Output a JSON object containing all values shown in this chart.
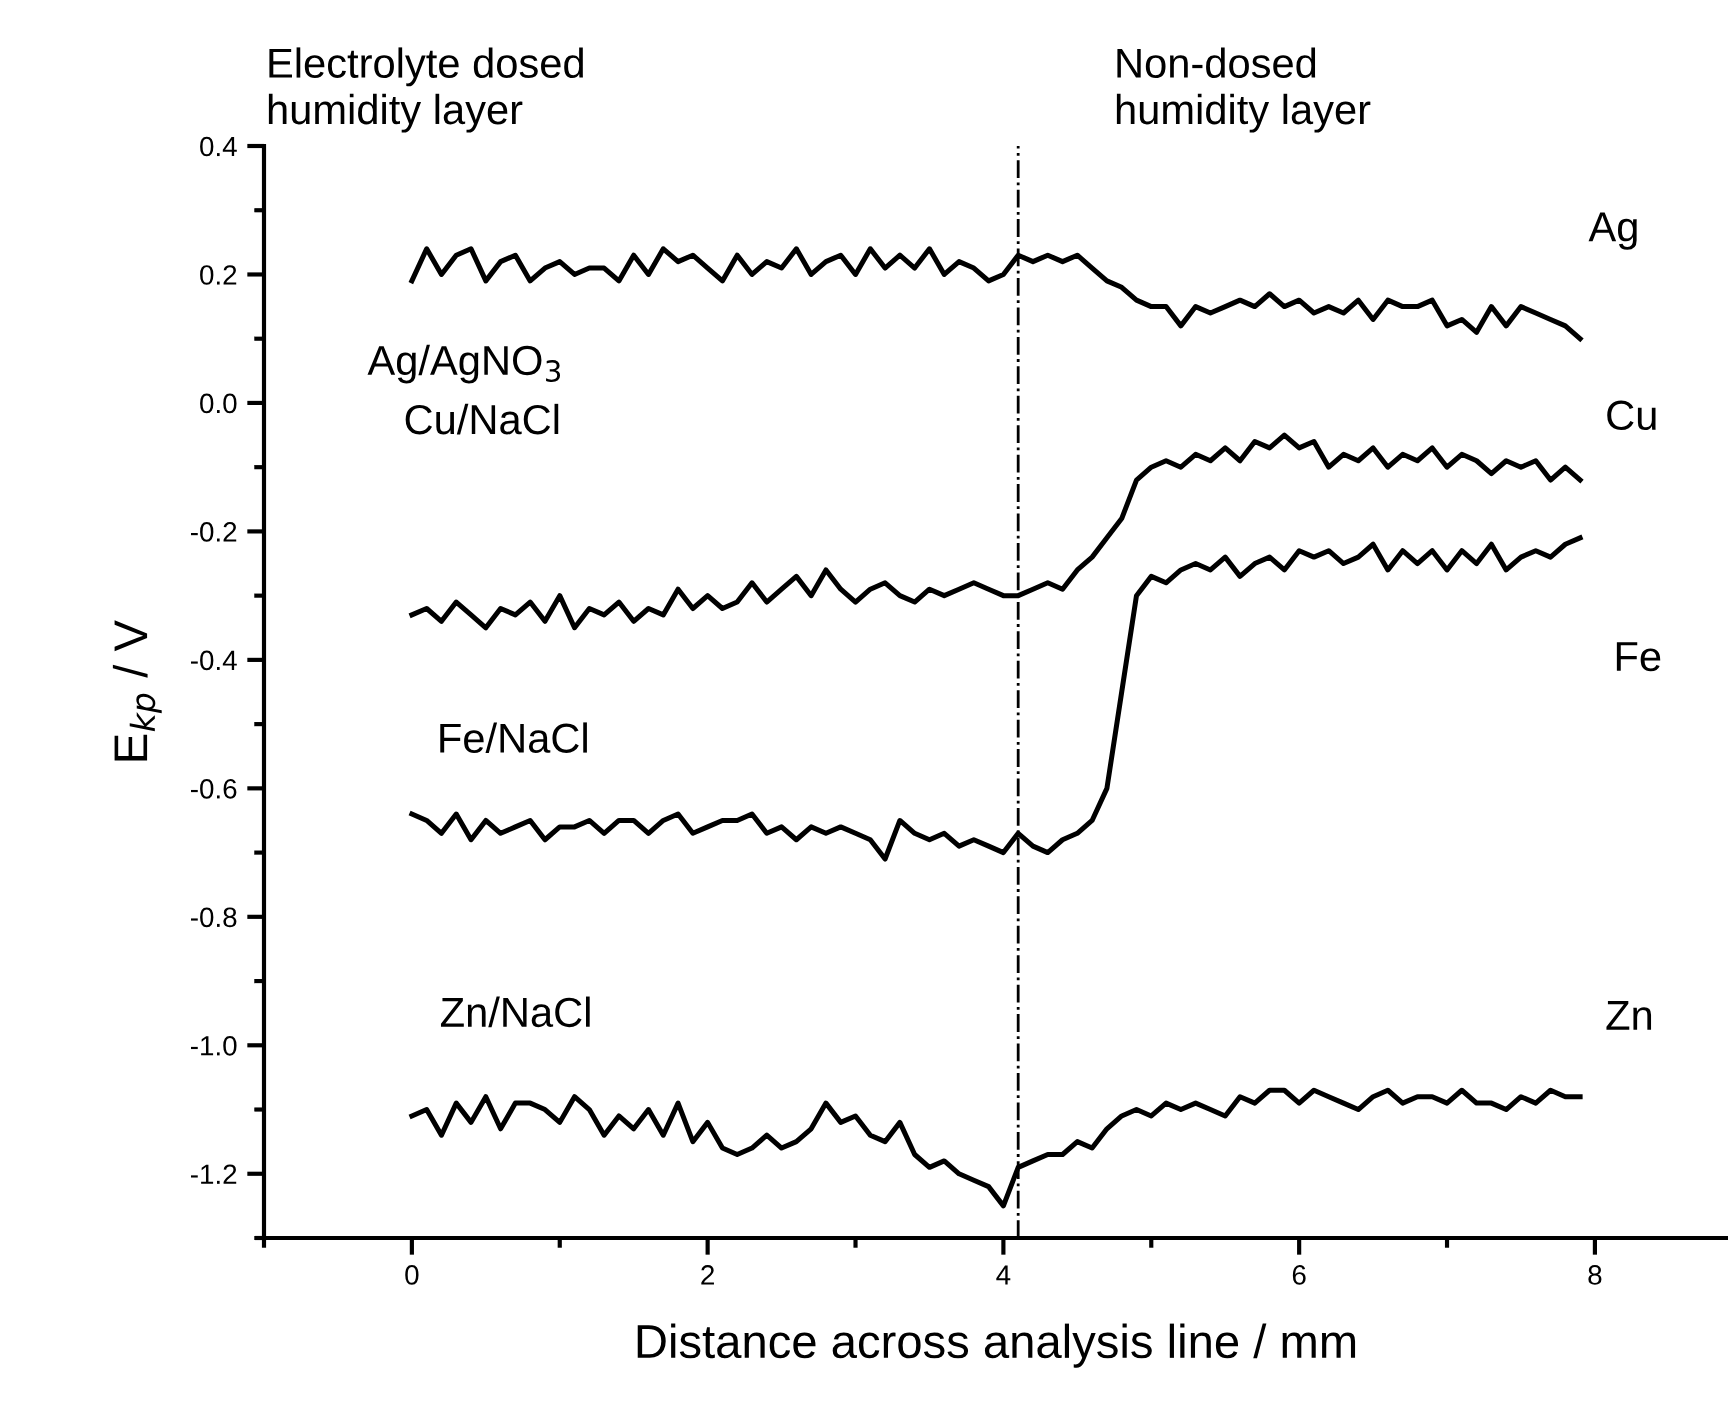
{
  "chart_data": {
    "type": "line",
    "xlabel": "Distance across analysis line / mm",
    "ylabel": "E$_{kp}$ / V",
    "x": [
      0.0,
      0.1,
      0.2,
      0.3,
      0.4,
      0.5,
      0.6,
      0.7,
      0.8,
      0.9,
      1.0,
      1.1,
      1.2,
      1.3,
      1.4,
      1.5,
      1.6,
      1.7,
      1.8,
      1.9,
      2.0,
      2.1,
      2.2,
      2.3,
      2.4,
      2.5,
      2.6,
      2.7,
      2.8,
      2.9,
      3.0,
      3.1,
      3.2,
      3.3,
      3.4,
      3.5,
      3.6,
      3.7,
      3.8,
      3.9,
      4.0,
      4.1,
      4.2,
      4.3,
      4.4,
      4.5,
      4.6,
      4.7,
      4.8,
      4.9,
      5.0,
      5.1,
      5.2,
      5.3,
      5.4,
      5.5,
      5.6,
      5.7,
      5.8,
      5.9,
      6.0,
      6.1,
      6.2,
      6.3,
      6.4,
      6.5,
      6.6,
      6.7,
      6.8,
      6.9,
      7.0,
      7.1,
      7.2,
      7.3,
      7.4,
      7.5,
      7.6,
      7.7,
      7.8,
      7.9
    ],
    "series": [
      {
        "name": "Ag",
        "color": "#000000",
        "values": [
          0.19,
          0.24,
          0.2,
          0.23,
          0.24,
          0.19,
          0.22,
          0.23,
          0.19,
          0.21,
          0.22,
          0.2,
          0.21,
          0.21,
          0.19,
          0.23,
          0.2,
          0.24,
          0.22,
          0.23,
          0.21,
          0.19,
          0.23,
          0.2,
          0.22,
          0.21,
          0.24,
          0.2,
          0.22,
          0.23,
          0.2,
          0.24,
          0.21,
          0.23,
          0.21,
          0.24,
          0.2,
          0.22,
          0.21,
          0.19,
          0.2,
          0.23,
          0.22,
          0.23,
          0.22,
          0.23,
          0.21,
          0.19,
          0.18,
          0.16,
          0.15,
          0.15,
          0.12,
          0.15,
          0.14,
          0.15,
          0.16,
          0.15,
          0.17,
          0.15,
          0.16,
          0.14,
          0.15,
          0.14,
          0.16,
          0.13,
          0.16,
          0.15,
          0.15,
          0.16,
          0.12,
          0.13,
          0.11,
          0.15,
          0.12,
          0.15,
          0.14,
          0.13,
          0.12,
          0.1
        ]
      },
      {
        "name": "Cu",
        "color": "#000000",
        "values": [
          -0.33,
          -0.32,
          -0.34,
          -0.31,
          -0.33,
          -0.35,
          -0.32,
          -0.33,
          -0.31,
          -0.34,
          -0.3,
          -0.35,
          -0.32,
          -0.33,
          -0.31,
          -0.34,
          -0.32,
          -0.33,
          -0.29,
          -0.32,
          -0.3,
          -0.32,
          -0.31,
          -0.28,
          -0.31,
          -0.29,
          -0.27,
          -0.3,
          -0.26,
          -0.29,
          -0.31,
          -0.29,
          -0.28,
          -0.3,
          -0.31,
          -0.29,
          -0.3,
          -0.29,
          -0.28,
          -0.29,
          -0.3,
          -0.3,
          -0.29,
          -0.28,
          -0.29,
          -0.26,
          -0.24,
          -0.21,
          -0.18,
          -0.12,
          -0.1,
          -0.09,
          -0.1,
          -0.08,
          -0.09,
          -0.07,
          -0.09,
          -0.06,
          -0.07,
          -0.05,
          -0.07,
          -0.06,
          -0.1,
          -0.08,
          -0.09,
          -0.07,
          -0.1,
          -0.08,
          -0.09,
          -0.07,
          -0.1,
          -0.08,
          -0.09,
          -0.11,
          -0.09,
          -0.1,
          -0.09,
          -0.12,
          -0.1,
          -0.12
        ]
      },
      {
        "name": "Fe",
        "color": "#000000",
        "values": [
          -0.64,
          -0.65,
          -0.67,
          -0.64,
          -0.68,
          -0.65,
          -0.67,
          -0.66,
          -0.65,
          -0.68,
          -0.66,
          -0.66,
          -0.65,
          -0.67,
          -0.65,
          -0.65,
          -0.67,
          -0.65,
          -0.64,
          -0.67,
          -0.66,
          -0.65,
          -0.65,
          -0.64,
          -0.67,
          -0.66,
          -0.68,
          -0.66,
          -0.67,
          -0.66,
          -0.67,
          -0.68,
          -0.71,
          -0.65,
          -0.67,
          -0.68,
          -0.67,
          -0.69,
          -0.68,
          -0.69,
          -0.7,
          -0.67,
          -0.69,
          -0.7,
          -0.68,
          -0.67,
          -0.65,
          -0.6,
          -0.45,
          -0.3,
          -0.27,
          -0.28,
          -0.26,
          -0.25,
          -0.26,
          -0.24,
          -0.27,
          -0.25,
          -0.24,
          -0.26,
          -0.23,
          -0.24,
          -0.23,
          -0.25,
          -0.24,
          -0.22,
          -0.26,
          -0.23,
          -0.25,
          -0.23,
          -0.26,
          -0.23,
          -0.25,
          -0.22,
          -0.26,
          -0.24,
          -0.23,
          -0.24,
          -0.22,
          -0.21
        ]
      },
      {
        "name": "Zn",
        "color": "#000000",
        "values": [
          -1.11,
          -1.1,
          -1.14,
          -1.09,
          -1.12,
          -1.08,
          -1.13,
          -1.09,
          -1.09,
          -1.1,
          -1.12,
          -1.08,
          -1.1,
          -1.14,
          -1.11,
          -1.13,
          -1.1,
          -1.14,
          -1.09,
          -1.15,
          -1.12,
          -1.16,
          -1.17,
          -1.16,
          -1.14,
          -1.16,
          -1.15,
          -1.13,
          -1.09,
          -1.12,
          -1.11,
          -1.14,
          -1.15,
          -1.12,
          -1.17,
          -1.19,
          -1.18,
          -1.2,
          -1.21,
          -1.22,
          -1.25,
          -1.19,
          -1.18,
          -1.17,
          -1.17,
          -1.15,
          -1.16,
          -1.13,
          -1.11,
          -1.1,
          -1.11,
          -1.09,
          -1.1,
          -1.09,
          -1.1,
          -1.11,
          -1.08,
          -1.09,
          -1.07,
          -1.07,
          -1.09,
          -1.07,
          -1.08,
          -1.09,
          -1.1,
          -1.08,
          -1.07,
          -1.09,
          -1.08,
          -1.08,
          -1.09,
          -1.07,
          -1.09,
          -1.09,
          -1.1,
          -1.08,
          -1.09,
          -1.07,
          -1.08,
          -1.08
        ]
      }
    ],
    "xlim": [
      -1,
      8.9
    ],
    "ylim": [
      -1.3,
      0.4
    ],
    "xticks": [
      0,
      2,
      4,
      6,
      8
    ],
    "yticks": [
      -1.2,
      {
        "value": -1.0,
        "label": "-1.0"
      },
      -0.8,
      -0.6,
      -0.4,
      -0.2,
      {
        "value": 0,
        "label": "0.0"
      },
      0.2,
      0.4
    ],
    "ref_lines": [
      {
        "axis": "x",
        "value": 4.1,
        "color": "#000000",
        "line_style": "dashdot"
      }
    ],
    "annotations": [
      "Electrolyte dosed\nhumidity layer",
      "Non-dosed\nhumidity layer",
      "Ag/AgNO$_{3}$",
      "Cu/NaCl",
      "Fe/NaCl",
      "Zn/NaCl"
    ],
    "grid": false,
    "legend": false
  }
}
